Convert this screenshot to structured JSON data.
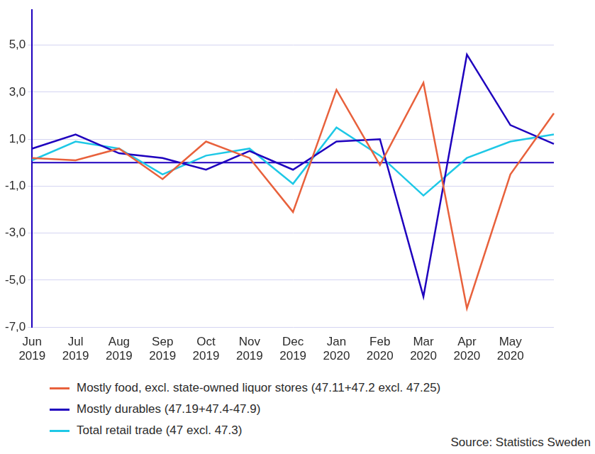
{
  "chart_data": {
    "type": "line",
    "categories": [
      "Jun 2019",
      "Jul 2019",
      "Aug 2019",
      "Sep 2019",
      "Oct 2019",
      "Nov 2019",
      "Dec 2019",
      "Jan 2020",
      "Feb 2020",
      "Mar 2020",
      "Apr 2020",
      "May 2020",
      null
    ],
    "series": [
      {
        "name": "Mostly food, excl. state-owned liquor stores (47.11+47.2 excl. 47.25)",
        "color": "#e8613c",
        "values": [
          0.2,
          0.1,
          0.6,
          -0.7,
          0.9,
          0.2,
          -2.1,
          3.1,
          -0.1,
          3.4,
          -6.2,
          -0.5,
          2.1
        ]
      },
      {
        "name": "Mostly durables (47.19+47.4-47.9)",
        "color": "#1e00be",
        "values": [
          0.6,
          1.2,
          0.4,
          0.2,
          -0.3,
          0.5,
          -0.3,
          0.9,
          1.0,
          -5.7,
          4.6,
          1.6,
          0.8
        ]
      },
      {
        "name": "Total retail trade (47 excl. 47.3)",
        "color": "#1ec8e6",
        "values": [
          0.1,
          0.9,
          0.6,
          -0.5,
          0.3,
          0.6,
          -0.9,
          1.5,
          0.3,
          -1.4,
          0.2,
          0.9,
          1.2
        ]
      }
    ],
    "ylim": [
      -7,
      6.5
    ],
    "yticks": [
      {
        "value": -7,
        "label": "-7,0"
      },
      {
        "value": -5,
        "label": "-5,0"
      },
      {
        "value": -3,
        "label": "-3,0"
      },
      {
        "value": -1,
        "label": "-1,0"
      },
      {
        "value": 1,
        "label": "1,0"
      },
      {
        "value": 3,
        "label": "3,0"
      },
      {
        "value": 5,
        "label": "5,0"
      }
    ],
    "grid": true,
    "legend": "bottom",
    "source": "Source: Statistics Sweden"
  }
}
